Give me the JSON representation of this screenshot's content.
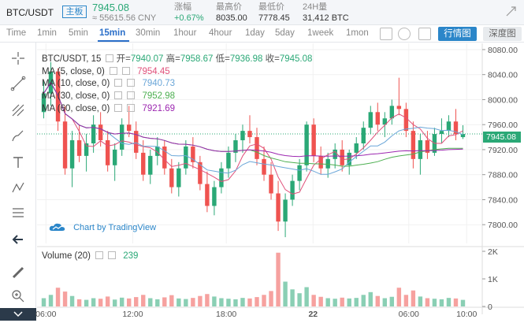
{
  "header": {
    "pair": "BTC/USDT",
    "tag": "主板",
    "price": "7945.08",
    "cny": "≈ 55615.56 CNY",
    "stats": [
      {
        "key": "涨幅",
        "value": "+0.67%",
        "up": true
      },
      {
        "key": "最高价",
        "value": "8035.00",
        "up": false
      },
      {
        "key": "最低价",
        "value": "7778.45",
        "up": false
      },
      {
        "key": "24H量",
        "value": "31,412 BTC",
        "up": false
      }
    ]
  },
  "toolbar": {
    "timeframes": [
      "Time",
      "1min",
      "5min",
      "15min",
      "30min",
      "1hour",
      "4hour",
      "1day",
      "5day",
      "1week",
      "1mon"
    ],
    "active": "15min",
    "kline_label": "行情图",
    "depth_label": "深度图"
  },
  "legend": {
    "symbol": "BTC/USDT, 15",
    "open_label": "开=",
    "open": "7940.07",
    "high_label": "高=",
    "high": "7958.67",
    "low_label": "低=",
    "low": "7936.98",
    "close_label": "收=",
    "close": "7945.08",
    "ma": [
      {
        "label": "MA (5, close, 0)",
        "value": "7954.45",
        "color": "#e0507a"
      },
      {
        "label": "MA (10, close, 0)",
        "value": "7940.73",
        "color": "#6aa6d8"
      },
      {
        "label": "MA (30, close, 0)",
        "value": "7952.98",
        "color": "#4caf50"
      },
      {
        "label": "MA (60, close, 0)",
        "value": "7921.69",
        "color": "#9c27b0"
      }
    ],
    "volume_label": "Volume (20)",
    "volume_value": "239"
  },
  "watermark": "Chart by TradingView",
  "colors": {
    "up": "#2aa876",
    "down": "#ef5350",
    "accent": "#2b86c9"
  },
  "chart_data": {
    "type": "candlestick",
    "y_ticks": [
      "8080.00",
      "8040.00",
      "8000.00",
      "7960.00",
      "7920.00",
      "7880.00",
      "7840.00",
      "7800.00"
    ],
    "ylim": [
      7770,
      8090
    ],
    "last_price": "7945.08",
    "x_ticks": [
      "06:00",
      "12:00",
      "18:00",
      "22",
      "06:00",
      "10:00"
    ],
    "volume_ticks": [
      "2K",
      "1K",
      "0"
    ],
    "volume_ylim": [
      0,
      2000
    ],
    "candles": [
      [
        7980,
        8030,
        7970,
        8010
      ],
      [
        8010,
        8060,
        7990,
        8045
      ],
      [
        8045,
        8050,
        7950,
        7965
      ],
      [
        7965,
        7990,
        7880,
        7890
      ],
      [
        7890,
        7950,
        7860,
        7935
      ],
      [
        7935,
        7960,
        7900,
        7910
      ],
      [
        7910,
        7945,
        7885,
        7930
      ],
      [
        7930,
        7975,
        7915,
        7960
      ],
      [
        7960,
        7980,
        7925,
        7935
      ],
      [
        7935,
        7950,
        7885,
        7895
      ],
      [
        7895,
        7930,
        7870,
        7920
      ],
      [
        7920,
        7970,
        7910,
        7960
      ],
      [
        7960,
        7990,
        7940,
        7950
      ],
      [
        7950,
        7965,
        7905,
        7915
      ],
      [
        7915,
        7935,
        7870,
        7880
      ],
      [
        7880,
        7920,
        7865,
        7910
      ],
      [
        7910,
        7940,
        7895,
        7925
      ],
      [
        7925,
        7935,
        7880,
        7890
      ],
      [
        7890,
        7905,
        7850,
        7860
      ],
      [
        7860,
        7900,
        7845,
        7890
      ],
      [
        7890,
        7935,
        7880,
        7925
      ],
      [
        7925,
        7940,
        7890,
        7900
      ],
      [
        7900,
        7910,
        7855,
        7865
      ],
      [
        7865,
        7885,
        7820,
        7830
      ],
      [
        7830,
        7870,
        7815,
        7860
      ],
      [
        7860,
        7900,
        7850,
        7890
      ],
      [
        7890,
        7925,
        7875,
        7915
      ],
      [
        7915,
        7945,
        7900,
        7935
      ],
      [
        7935,
        7960,
        7915,
        7950
      ],
      [
        7950,
        7975,
        7930,
        7940
      ],
      [
        7940,
        7955,
        7895,
        7905
      ],
      [
        7905,
        7925,
        7870,
        7880
      ],
      [
        7880,
        7900,
        7840,
        7850
      ],
      [
        7850,
        7870,
        7790,
        7805
      ],
      [
        7805,
        7850,
        7780,
        7840
      ],
      [
        7840,
        7880,
        7830,
        7870
      ],
      [
        7870,
        7905,
        7855,
        7895
      ],
      [
        7895,
        7965,
        7885,
        7960
      ],
      [
        7960,
        7970,
        7900,
        7910
      ],
      [
        7910,
        7925,
        7880,
        7890
      ],
      [
        7890,
        7915,
        7875,
        7905
      ],
      [
        7905,
        7930,
        7890,
        7920
      ],
      [
        7920,
        7935,
        7885,
        7895
      ],
      [
        7895,
        7920,
        7880,
        7915
      ],
      [
        7915,
        7940,
        7905,
        7930
      ],
      [
        7930,
        7965,
        7920,
        7955
      ],
      [
        7955,
        7990,
        7945,
        7980
      ],
      [
        7980,
        7995,
        7950,
        7960
      ],
      [
        7960,
        7980,
        7940,
        7970
      ],
      [
        7970,
        8000,
        7960,
        7990
      ],
      [
        7990,
        8035,
        7975,
        7985
      ],
      [
        7985,
        7995,
        7940,
        7950
      ],
      [
        7950,
        7965,
        7890,
        7905
      ],
      [
        7905,
        7945,
        7880,
        7935
      ],
      [
        7935,
        7950,
        7905,
        7915
      ],
      [
        7915,
        7955,
        7910,
        7945
      ],
      [
        7945,
        7970,
        7930,
        7950
      ],
      [
        7950,
        7975,
        7940,
        7965
      ],
      [
        7965,
        7985,
        7935,
        7945
      ],
      [
        7940,
        7959,
        7937,
        7945
      ]
    ],
    "volumes": [
      300,
      420,
      680,
      540,
      380,
      260,
      240,
      300,
      280,
      360,
      250,
      320,
      290,
      340,
      420,
      300,
      260,
      330,
      410,
      290,
      270,
      310,
      380,
      450,
      360,
      300,
      280,
      260,
      310,
      290,
      340,
      420,
      560,
      1950,
      900,
      620,
      480,
      700,
      420,
      350,
      300,
      280,
      320,
      290,
      310,
      420,
      520,
      380,
      300,
      350,
      680,
      420,
      580,
      360,
      300,
      280,
      260,
      310,
      290,
      239
    ]
  }
}
